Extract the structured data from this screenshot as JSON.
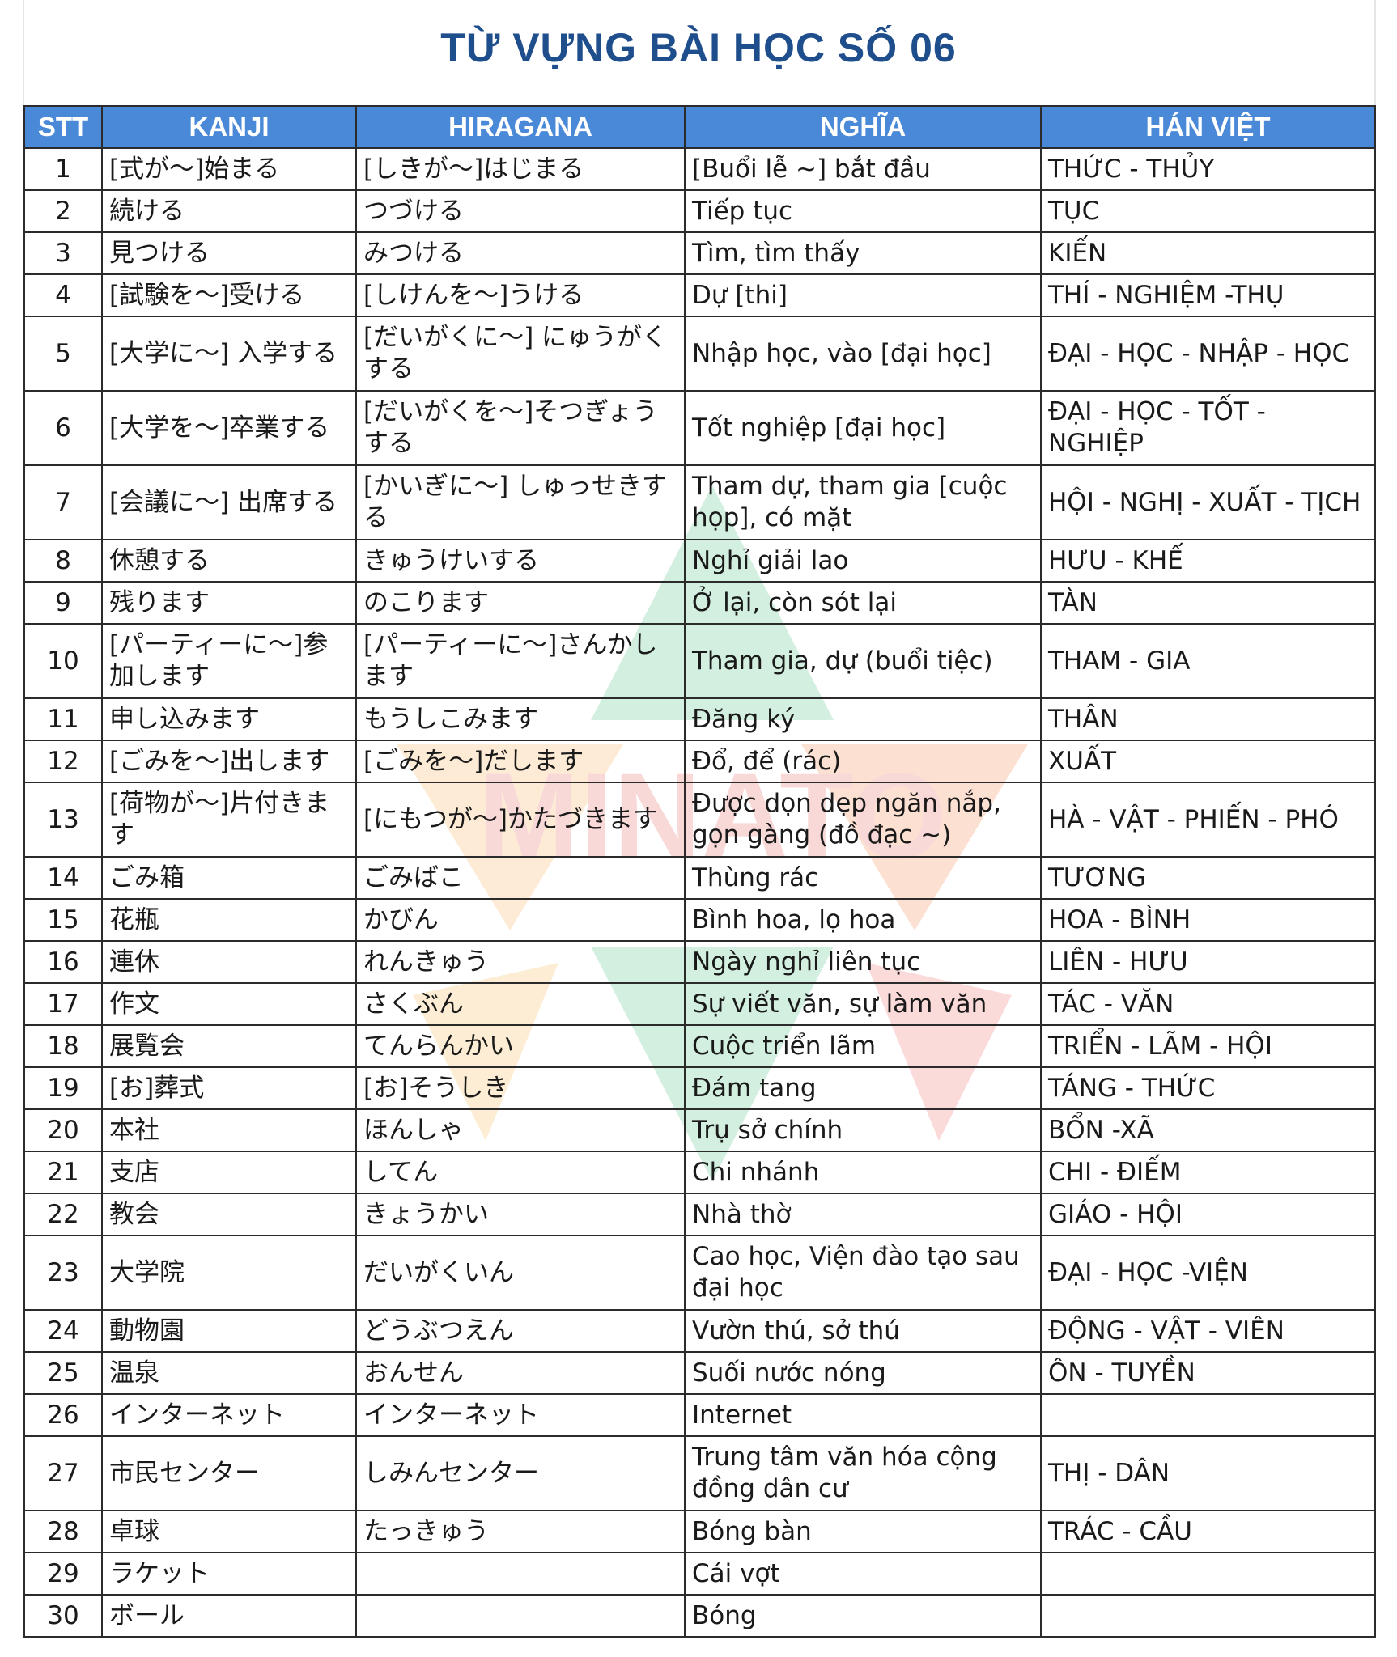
{
  "title": "TỪ VỰNG BÀI HỌC SỐ 06",
  "watermark_text": "MINATO",
  "header": {
    "stt": "STT",
    "kanji": "KANJI",
    "hiragana": "HIRAGANA",
    "nghia": "NGHĨA",
    "han_viet": "HÁN VIỆT"
  },
  "rows": [
    {
      "stt": "1",
      "kanji": "[式が～]始まる",
      "hiragana": "[しきが～]はじまる",
      "nghia": "[Buổi lễ ~] bắt đầu",
      "han_viet": "THỨC - THỦY"
    },
    {
      "stt": "2",
      "kanji": "続ける",
      "hiragana": "つづける",
      "nghia": "Tiếp tục",
      "han_viet": "TỤC"
    },
    {
      "stt": "3",
      "kanji": "見つける",
      "hiragana": "みつける",
      "nghia": "Tìm, tìm thấy",
      "han_viet": "KIẾN"
    },
    {
      "stt": "4",
      "kanji": "[試験を～]受ける",
      "hiragana": "[しけんを～]うける",
      "nghia": "Dự [thi]",
      "han_viet": "THÍ - NGHIỆM -THỤ"
    },
    {
      "stt": "5",
      "kanji": "[大学に～] 入学する",
      "hiragana": "[だいがくに～] にゅうがくする",
      "nghia": "Nhập học, vào [đại học]",
      "han_viet": "ĐẠI - HỌC - NHẬP - HỌC"
    },
    {
      "stt": "6",
      "kanji": "[大学を～]卒業する",
      "hiragana": "[だいがくを～]そつぎょうする",
      "nghia": "Tốt nghiệp [đại học]",
      "han_viet": "ĐẠI - HỌC - TỐT - NGHIỆP"
    },
    {
      "stt": "7",
      "kanji": "[会議に～] 出席する",
      "hiragana": "[かいぎに～] しゅっせきする",
      "nghia": "Tham dự, tham gia [cuộc họp], có mặt",
      "han_viet": "HỘI - NGHỊ - XUẤT - TỊCH"
    },
    {
      "stt": "8",
      "kanji": "休憩する",
      "hiragana": "きゅうけいする",
      "nghia": "Nghỉ giải lao",
      "han_viet": "HƯU - KHẾ"
    },
    {
      "stt": "9",
      "kanji": "残ります",
      "hiragana": "のこります",
      "nghia": "Ở lại, còn sót lại",
      "han_viet": "TÀN"
    },
    {
      "stt": "10",
      "kanji": "[パーティーに～]参加します",
      "hiragana": "[パーティーに～]さんかします",
      "nghia": "Tham gia, dự (buổi tiệc)",
      "han_viet": "THAM - GIA"
    },
    {
      "stt": "11",
      "kanji": "申し込みます",
      "hiragana": "もうしこみます",
      "nghia": "Đăng ký",
      "han_viet": "THÂN"
    },
    {
      "stt": "12",
      "kanji": "[ごみを～]出します",
      "hiragana": "[ごみを～]だします",
      "nghia": "Đổ, để (rác)",
      "han_viet": "XUẤT"
    },
    {
      "stt": "13",
      "kanji": "[荷物が～]片付きます",
      "hiragana": "[にもつが～]かたづきます",
      "nghia": "Được dọn dẹp ngăn nắp, gọn gàng (đồ đạc ~)",
      "han_viet": "HÀ - VẬT - PHIẾN - PHÓ"
    },
    {
      "stt": "14",
      "kanji": "ごみ箱",
      "hiragana": "ごみばこ",
      "nghia": "Thùng rác",
      "han_viet": "TƯƠNG"
    },
    {
      "stt": "15",
      "kanji": "花瓶",
      "hiragana": "かびん",
      "nghia": "Bình hoa, lọ hoa",
      "han_viet": "HOA - BÌNH"
    },
    {
      "stt": "16",
      "kanji": "連休",
      "hiragana": "れんきゅう",
      "nghia": "Ngày nghỉ liên tục",
      "han_viet": "LIÊN - HƯU"
    },
    {
      "stt": "17",
      "kanji": "作文",
      "hiragana": "さくぶん",
      "nghia": "Sự viết văn, sự làm văn",
      "han_viet": "TÁC - VĂN"
    },
    {
      "stt": "18",
      "kanji": "展覧会",
      "hiragana": "てんらんかい",
      "nghia": "Cuộc triển lãm",
      "han_viet": "TRIỂN - LÃM - HỘI"
    },
    {
      "stt": "19",
      "kanji": "[お]葬式",
      "hiragana": "[お]そうしき",
      "nghia": "Đám tang",
      "han_viet": "TÁNG - THỨC"
    },
    {
      "stt": "20",
      "kanji": "本社",
      "hiragana": "ほんしゃ",
      "nghia": "Trụ sở chính",
      "han_viet": "BỔN -XÃ"
    },
    {
      "stt": "21",
      "kanji": "支店",
      "hiragana": "してん",
      "nghia": "Chi nhánh",
      "han_viet": "CHI - ĐIẾM"
    },
    {
      "stt": "22",
      "kanji": "教会",
      "hiragana": "きょうかい",
      "nghia": "Nhà thờ",
      "han_viet": "GIÁO - HỘI"
    },
    {
      "stt": "23",
      "kanji": "大学院",
      "hiragana": "だいがくいん",
      "nghia": "Cao học, Viện đào tạo sau đại học",
      "han_viet": "ĐẠI - HỌC -VIỆN"
    },
    {
      "stt": "24",
      "kanji": "動物園",
      "hiragana": "どうぶつえん",
      "nghia": "Vườn thú, sở thú",
      "han_viet": "ĐỘNG - VẬT - VIÊN"
    },
    {
      "stt": "25",
      "kanji": "温泉",
      "hiragana": "おんせん",
      "nghia": "Suối nước nóng",
      "han_viet": "ÔN - TUYỀN"
    },
    {
      "stt": "26",
      "kanji": "インターネット",
      "hiragana": "インターネット",
      "nghia": "Internet",
      "han_viet": ""
    },
    {
      "stt": "27",
      "kanji": "市民センター",
      "hiragana": "しみんセンター",
      "nghia": "Trung tâm văn hóa cộng đồng dân cư",
      "han_viet": "THỊ - DÂN"
    },
    {
      "stt": "28",
      "kanji": "卓球",
      "hiragana": "たっきゅう",
      "nghia": "Bóng bàn",
      "han_viet": "TRÁC - CẦU"
    },
    {
      "stt": "29",
      "kanji": "ラケット",
      "hiragana": "",
      "nghia": "Cái vợt",
      "han_viet": ""
    },
    {
      "stt": "30",
      "kanji": "ボール",
      "hiragana": "",
      "nghia": "Bóng",
      "han_viet": ""
    }
  ]
}
